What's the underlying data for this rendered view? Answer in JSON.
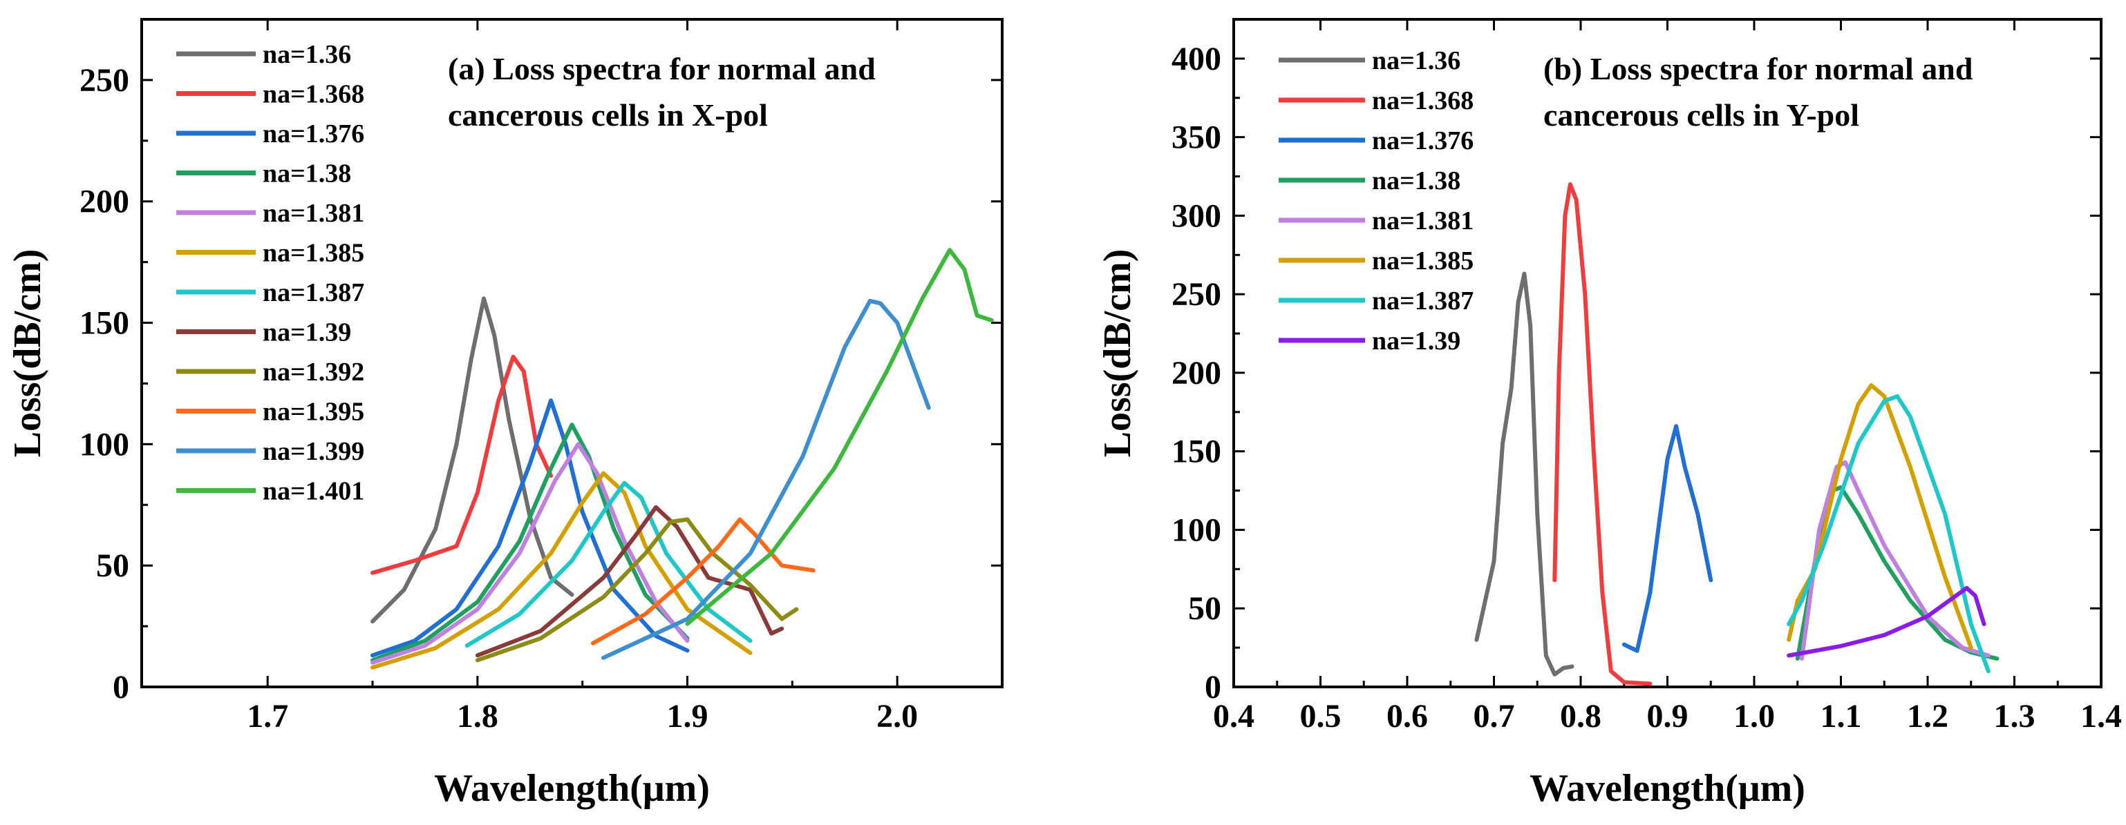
{
  "chart_data": [
    {
      "type": "line",
      "title_lines": [
        "(a) Loss spectra for normal and",
        "cancerous cells in X-pol"
      ],
      "xlabel": "Wavelength(μm)",
      "ylabel": "Loss(dB/cm)",
      "xlim": [
        1.64,
        2.05
      ],
      "ylim": [
        0,
        275
      ],
      "xticks": [
        1.7,
        1.8,
        1.9,
        2.0
      ],
      "xtick_labels": [
        "1.7",
        "1.8",
        "1.9",
        "2.0"
      ],
      "yticks": [
        0,
        50,
        100,
        150,
        200,
        250
      ],
      "ytick_labels": [
        "0",
        "50",
        "100",
        "150",
        "200",
        "250"
      ],
      "legend_position": "top-left",
      "grid": false,
      "series": [
        {
          "name": "na=1.36",
          "color": "#6e6e6e",
          "x": [
            1.75,
            1.765,
            1.78,
            1.79,
            1.797,
            1.803,
            1.808,
            1.815,
            1.825,
            1.835,
            1.845
          ],
          "y": [
            27,
            40,
            65,
            100,
            135,
            160,
            145,
            110,
            70,
            45,
            38
          ]
        },
        {
          "name": "na=1.368",
          "color": "#f03c3c",
          "x": [
            1.75,
            1.77,
            1.79,
            1.8,
            1.81,
            1.817,
            1.822,
            1.828,
            1.835
          ],
          "y": [
            47,
            52,
            58,
            80,
            118,
            136,
            130,
            100,
            87
          ]
        },
        {
          "name": "na=1.376",
          "color": "#1f6fd4",
          "x": [
            1.75,
            1.77,
            1.79,
            1.81,
            1.825,
            1.835,
            1.842,
            1.85,
            1.865,
            1.885,
            1.9
          ],
          "y": [
            13,
            19,
            32,
            58,
            92,
            118,
            100,
            72,
            40,
            21,
            15
          ]
        },
        {
          "name": "na=1.38",
          "color": "#20a060",
          "x": [
            1.75,
            1.775,
            1.8,
            1.82,
            1.835,
            1.845,
            1.853,
            1.865,
            1.88,
            1.9
          ],
          "y": [
            11,
            19,
            35,
            60,
            90,
            108,
            95,
            65,
            38,
            20
          ]
        },
        {
          "name": "na=1.381",
          "color": "#c080e0",
          "x": [
            1.75,
            1.775,
            1.8,
            1.82,
            1.837,
            1.848,
            1.857,
            1.87,
            1.885,
            1.9
          ],
          "y": [
            10,
            17,
            32,
            55,
            85,
            100,
            88,
            60,
            35,
            19
          ]
        },
        {
          "name": "na=1.385",
          "color": "#d4a000",
          "x": [
            1.75,
            1.78,
            1.81,
            1.835,
            1.85,
            1.86,
            1.87,
            1.88,
            1.9,
            1.93
          ],
          "y": [
            8,
            16,
            32,
            55,
            76,
            88,
            80,
            58,
            32,
            14
          ]
        },
        {
          "name": "na=1.387",
          "color": "#1ec8c8",
          "x": [
            1.795,
            1.82,
            1.845,
            1.86,
            1.87,
            1.878,
            1.89,
            1.91,
            1.93
          ],
          "y": [
            17,
            30,
            52,
            72,
            84,
            78,
            55,
            32,
            19
          ]
        },
        {
          "name": "na=1.39",
          "color": "#8b3a3a",
          "x": [
            1.8,
            1.83,
            1.86,
            1.875,
            1.885,
            1.895,
            1.91,
            1.93,
            1.94,
            1.945
          ],
          "y": [
            13,
            23,
            45,
            62,
            74,
            66,
            45,
            40,
            22,
            24
          ]
        },
        {
          "name": "na=1.392",
          "color": "#8c8c14",
          "x": [
            1.8,
            1.83,
            1.86,
            1.88,
            1.892,
            1.9,
            1.912,
            1.93,
            1.945,
            1.952
          ],
          "y": [
            11,
            20,
            37,
            55,
            68,
            69,
            55,
            42,
            28,
            32
          ]
        },
        {
          "name": "na=1.395",
          "color": "#ff6a1a",
          "x": [
            1.855,
            1.88,
            1.9,
            1.915,
            1.925,
            1.932,
            1.945,
            1.96
          ],
          "y": [
            18,
            30,
            45,
            58,
            69,
            63,
            50,
            48
          ]
        },
        {
          "name": "na=1.399",
          "color": "#3d8fd0",
          "x": [
            1.86,
            1.9,
            1.93,
            1.955,
            1.975,
            1.987,
            1.992,
            2.0,
            2.015
          ],
          "y": [
            12,
            28,
            55,
            95,
            140,
            159,
            158,
            150,
            115
          ]
        },
        {
          "name": "na=1.401",
          "color": "#3cb93c",
          "x": [
            1.9,
            1.94,
            1.97,
            1.995,
            2.012,
            2.025,
            2.032,
            2.038,
            2.045
          ],
          "y": [
            26,
            55,
            90,
            130,
            160,
            180,
            172,
            153,
            151
          ]
        }
      ]
    },
    {
      "type": "line",
      "title_lines": [
        "(b) Loss spectra for normal and",
        "cancerous cells in Y-pol"
      ],
      "xlabel": "Wavelength(μm)",
      "ylabel": "Loss(dB/cm)",
      "xlim": [
        0.4,
        1.4
      ],
      "ylim": [
        0,
        425
      ],
      "xticks": [
        0.4,
        0.5,
        0.6,
        0.7,
        0.8,
        0.9,
        1.0,
        1.1,
        1.2,
        1.3,
        1.4
      ],
      "xtick_labels": [
        "0.4",
        "0.5",
        "0.6",
        "0.7",
        "0.8",
        "0.9",
        "1.0",
        "1.1",
        "1.2",
        "1.3",
        "1.4"
      ],
      "yticks": [
        0,
        50,
        100,
        150,
        200,
        250,
        300,
        350,
        400
      ],
      "ytick_labels": [
        "0",
        "50",
        "100",
        "150",
        "200",
        "250",
        "300",
        "350",
        "400"
      ],
      "legend_position": "top-left",
      "grid": false,
      "series": [
        {
          "name": "na=1.36",
          "color": "#6e6e6e",
          "x": [
            0.68,
            0.7,
            0.71,
            0.72,
            0.728,
            0.735,
            0.742,
            0.75,
            0.76,
            0.77,
            0.78,
            0.79
          ],
          "y": [
            30,
            80,
            155,
            190,
            245,
            263,
            230,
            110,
            20,
            8,
            12,
            13
          ]
        },
        {
          "name": "na=1.368",
          "color": "#f03c3c",
          "x": [
            0.77,
            0.775,
            0.782,
            0.788,
            0.795,
            0.805,
            0.815,
            0.825,
            0.835,
            0.85,
            0.88
          ],
          "y": [
            68,
            200,
            300,
            320,
            310,
            250,
            150,
            60,
            10,
            3,
            2
          ]
        },
        {
          "name": "na=1.376",
          "color": "#1f6fd4",
          "x": [
            0.85,
            0.865,
            0.88,
            0.9,
            0.91,
            0.92,
            0.935,
            0.95
          ],
          "y": [
            27,
            23,
            60,
            145,
            166,
            140,
            110,
            68
          ]
        },
        {
          "name": "na=1.38",
          "color": "#20a060",
          "x": [
            1.05,
            1.07,
            1.09,
            1.1,
            1.12,
            1.15,
            1.18,
            1.22,
            1.25,
            1.28
          ],
          "y": [
            18,
            80,
            125,
            127,
            110,
            80,
            55,
            30,
            22,
            18
          ]
        },
        {
          "name": "na=1.381",
          "color": "#c080e0",
          "x": [
            1.055,
            1.075,
            1.095,
            1.105,
            1.12,
            1.15,
            1.2,
            1.24,
            1.27
          ],
          "y": [
            18,
            100,
            140,
            143,
            125,
            90,
            45,
            25,
            20
          ]
        },
        {
          "name": "na=1.385",
          "color": "#d4a000",
          "x": [
            1.04,
            1.05,
            1.07,
            1.1,
            1.12,
            1.135,
            1.15,
            1.18,
            1.22,
            1.25
          ],
          "y": [
            30,
            55,
            75,
            145,
            180,
            192,
            185,
            140,
            70,
            25
          ]
        },
        {
          "name": "na=1.387",
          "color": "#1ec8c8",
          "x": [
            1.04,
            1.055,
            1.08,
            1.12,
            1.15,
            1.165,
            1.18,
            1.22,
            1.25,
            1.27
          ],
          "y": [
            40,
            55,
            90,
            155,
            182,
            185,
            172,
            110,
            40,
            10
          ]
        },
        {
          "name": "na=1.39",
          "color": "#8a1be8",
          "x": [
            1.04,
            1.1,
            1.15,
            1.2,
            1.23,
            1.245,
            1.255,
            1.265
          ],
          "y": [
            20,
            26,
            33,
            45,
            57,
            63,
            58,
            40
          ]
        }
      ]
    }
  ]
}
